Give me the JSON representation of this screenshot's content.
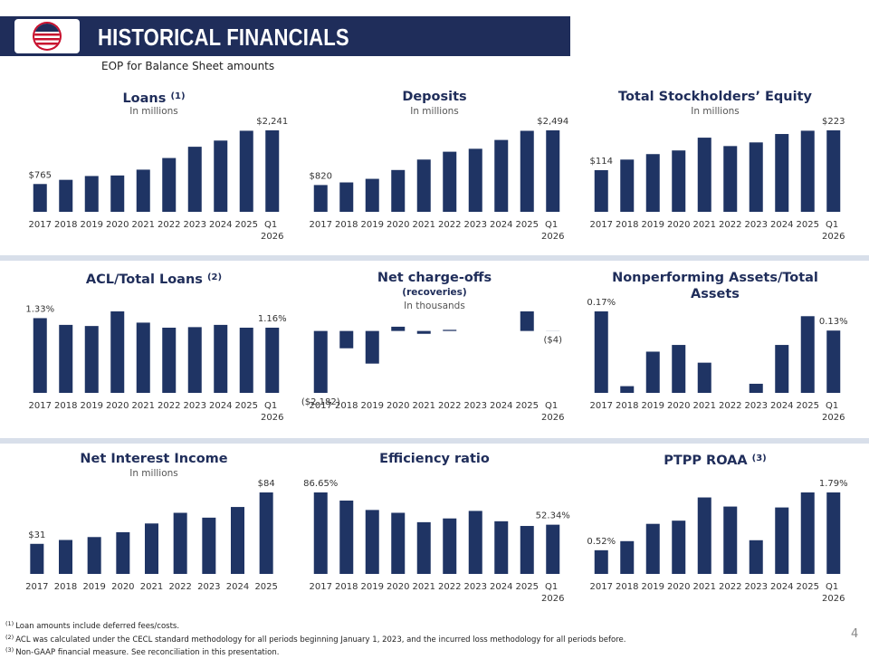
{
  "header": {
    "title": "HISTORICAL FINANCIALS",
    "subtitle": "EOP for Balance Sheet amounts"
  },
  "chart_data": [
    {
      "type": "bar",
      "title": "Loans",
      "title_note": "(1)",
      "subtitles": [
        "In millions"
      ],
      "categories": [
        "2017",
        "2018",
        "2019",
        "2020",
        "2021",
        "2022",
        "2023",
        "2024",
        "2025",
        "Q1 2026"
      ],
      "values": [
        765,
        880,
        985,
        1000,
        1160,
        1480,
        1790,
        1960,
        2230,
        2241
      ],
      "value_labels": [
        "$765",
        null,
        null,
        null,
        null,
        null,
        null,
        null,
        null,
        "$2,241"
      ],
      "color": "#1f3464"
    },
    {
      "type": "bar",
      "title": "Deposits",
      "subtitles": [
        "In millions"
      ],
      "categories": [
        "2017",
        "2018",
        "2019",
        "2020",
        "2021",
        "2022",
        "2023",
        "2024",
        "2025",
        "Q1 2026"
      ],
      "values": [
        820,
        900,
        1010,
        1280,
        1600,
        1840,
        1930,
        2200,
        2480,
        2494
      ],
      "value_labels": [
        "$820",
        null,
        null,
        null,
        null,
        null,
        null,
        null,
        null,
        "$2,494"
      ],
      "color": "#1f3464"
    },
    {
      "type": "bar",
      "title": "Total Stockholders’ Equity",
      "subtitles": [
        "In millions"
      ],
      "categories": [
        "2017",
        "2018",
        "2019",
        "2020",
        "2021",
        "2022",
        "2023",
        "2024",
        "2025",
        "Q1 2026"
      ],
      "values": [
        114,
        143,
        158,
        168,
        203,
        180,
        190,
        213,
        222,
        223
      ],
      "value_labels": [
        "$114",
        null,
        null,
        null,
        null,
        null,
        null,
        null,
        null,
        "$223"
      ],
      "color": "#1f3464"
    },
    {
      "type": "bar",
      "title": "ACL/Total Loans",
      "title_note": "(2)",
      "categories": [
        "2017",
        "2018",
        "2019",
        "2020",
        "2021",
        "2022",
        "2023",
        "2024",
        "2025",
        "Q1 2026"
      ],
      "values": [
        1.33,
        1.21,
        1.19,
        1.45,
        1.25,
        1.16,
        1.17,
        1.21,
        1.16,
        1.16
      ],
      "value_labels": [
        "1.33%",
        null,
        null,
        null,
        null,
        null,
        null,
        null,
        null,
        "1.16%"
      ],
      "color": "#1f3464"
    },
    {
      "type": "bar",
      "title": "Net charge-offs",
      "subtitles": [
        "(recoveries)",
        "In thousands"
      ],
      "categories": [
        "2017",
        "2018",
        "2019",
        "2020",
        "2021",
        "2022",
        "2023",
        "2024",
        "2025",
        "Q1 2026"
      ],
      "values": [
        -2182,
        -610,
        -1150,
        150,
        -100,
        40,
        0,
        0,
        690,
        -4
      ],
      "value_labels": [
        "($2,182)",
        null,
        null,
        null,
        null,
        null,
        null,
        null,
        null,
        "($4)"
      ],
      "color": "#1f3464"
    },
    {
      "type": "bar",
      "title": "Nonperforming Assets/Total Assets",
      "categories": [
        "2017",
        "2018",
        "2019",
        "2020",
        "2021",
        "2022",
        "2023",
        "2024",
        "2025",
        "Q1 2026"
      ],
      "values": [
        0.17,
        0.014,
        0.086,
        0.1,
        0.063,
        0,
        0.019,
        0.1,
        0.16,
        0.13
      ],
      "value_labels": [
        "0.17%",
        null,
        null,
        null,
        null,
        null,
        null,
        null,
        null,
        "0.13%"
      ],
      "color": "#1f3464"
    },
    {
      "type": "bar",
      "title": "Net Interest Income",
      "subtitles": [
        "In millions"
      ],
      "categories": [
        "2017",
        "2018",
        "2019",
        "2020",
        "2021",
        "2022",
        "2023",
        "2024",
        "2025"
      ],
      "values": [
        31,
        35,
        38,
        43,
        52,
        63,
        58,
        69,
        84
      ],
      "value_labels": [
        "$31",
        null,
        null,
        null,
        null,
        null,
        null,
        null,
        "$84"
      ],
      "color": "#1f3464"
    },
    {
      "type": "bar",
      "title": "Efficiency ratio",
      "categories": [
        "2017",
        "2018",
        "2019",
        "2020",
        "2021",
        "2022",
        "2023",
        "2024",
        "2025",
        "Q1 2026"
      ],
      "values": [
        86.65,
        78,
        68,
        65,
        55,
        59,
        67,
        56,
        51,
        52.34
      ],
      "value_labels": [
        "86.65%",
        null,
        null,
        null,
        null,
        null,
        null,
        null,
        null,
        "52.34%"
      ],
      "color": "#1f3464"
    },
    {
      "type": "bar",
      "title": "PTPP ROAA",
      "title_note": "(3)",
      "categories": [
        "2017",
        "2018",
        "2019",
        "2020",
        "2021",
        "2022",
        "2023",
        "2024",
        "2025",
        "Q1 2026"
      ],
      "values": [
        0.52,
        0.72,
        1.1,
        1.17,
        1.68,
        1.48,
        0.74,
        1.46,
        1.79,
        1.79
      ],
      "value_labels": [
        "0.52%",
        null,
        null,
        null,
        null,
        null,
        null,
        null,
        null,
        "1.79%"
      ],
      "color": "#1f3464"
    }
  ],
  "footnotes": [
    {
      "marker": "(1)",
      "text": "Loan amounts include deferred fees/costs."
    },
    {
      "marker": "(2)",
      "text": "ACL was calculated under the CECL standard methodology for all periods beginning January 1, 2023, and the incurred loss methodology for all periods before."
    },
    {
      "marker": "(3)",
      "text": "Non-GAAP financial measure. See reconciliation in this presentation."
    }
  ],
  "page_number": 4
}
